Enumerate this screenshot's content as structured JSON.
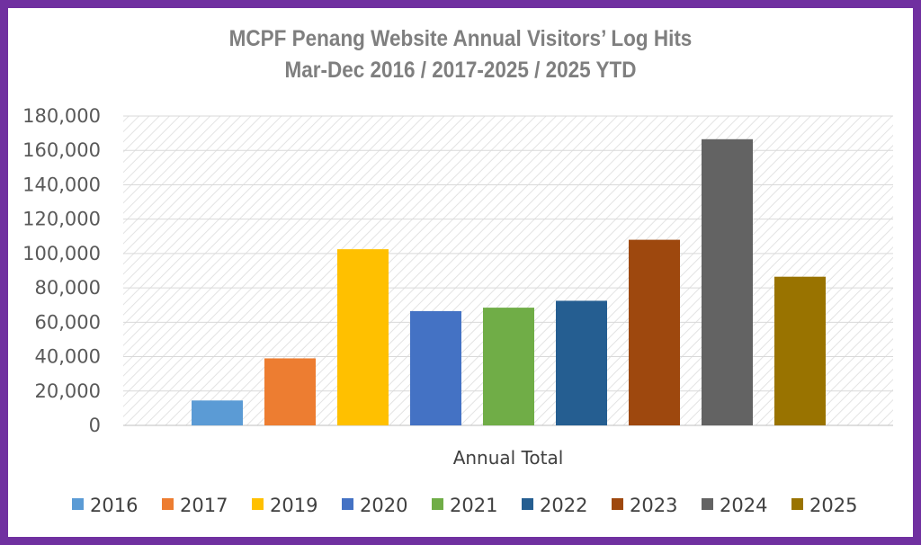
{
  "chart_data": {
    "type": "bar",
    "title_line1": "MCPF Penang Website Annual Visitors’ Log Hits",
    "title_line2": "Mar-Dec 2016 / 2017-2025 / 2025 YTD",
    "categories": [
      "Annual Total"
    ],
    "xlabel": "Annual Total",
    "ylim": [
      0,
      180000
    ],
    "yticks": [
      0,
      20000,
      40000,
      60000,
      80000,
      100000,
      120000,
      140000,
      160000,
      180000
    ],
    "ytick_labels": [
      "0",
      "20,000",
      "40,000",
      "60,000",
      "80,000",
      "100,000",
      "120,000",
      "140,000",
      "160,000",
      "180,000"
    ],
    "grid": true,
    "legend_position": "bottom",
    "series": [
      {
        "name": "2016",
        "values": [
          14500
        ],
        "color": "#5b9bd5"
      },
      {
        "name": "2017",
        "values": [
          39000
        ],
        "color": "#ed7d31"
      },
      {
        "name": "2019",
        "values": [
          102500
        ],
        "color": "#ffc000"
      },
      {
        "name": "2020",
        "values": [
          66500
        ],
        "color": "#4472c4"
      },
      {
        "name": "2021",
        "values": [
          68500
        ],
        "color": "#70ad47"
      },
      {
        "name": "2022",
        "values": [
          72500
        ],
        "color": "#255e91"
      },
      {
        "name": "2023",
        "values": [
          108000
        ],
        "color": "#9e480e"
      },
      {
        "name": "2024",
        "values": [
          166500
        ],
        "color": "#636363"
      },
      {
        "name": "2025",
        "values": [
          86500
        ],
        "color": "#997300"
      }
    ]
  }
}
